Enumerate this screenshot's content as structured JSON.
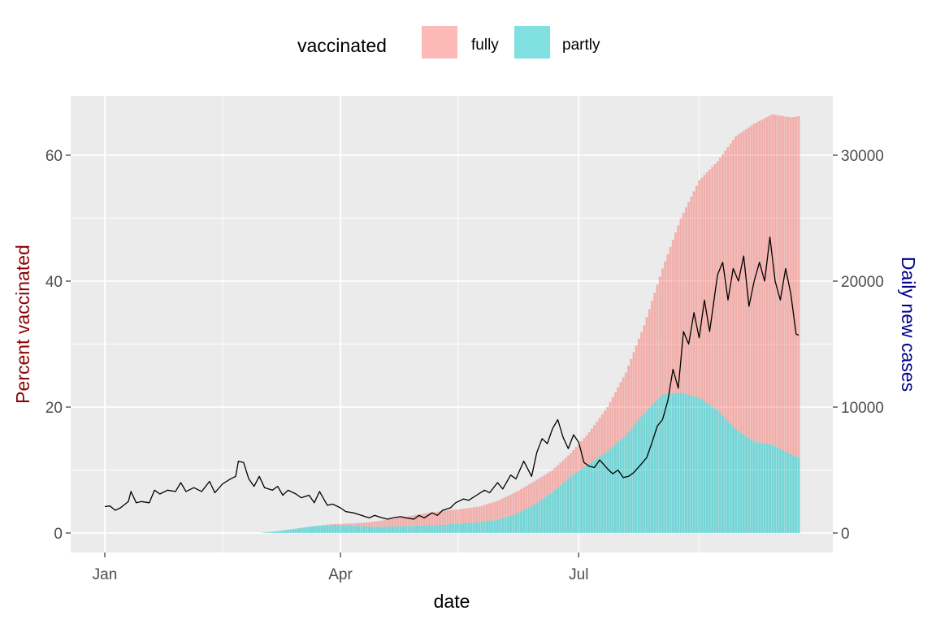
{
  "chart_data": {
    "type": "bar",
    "title": "",
    "xlabel": "date",
    "ylabel_left": "Percent vaccinated",
    "ylabel_right": "Daily new cases",
    "colors": {
      "fully": "#f8766d",
      "partly": "#00bfc4",
      "line": "#000000",
      "panel": "#ebebeb",
      "ylabel_left": "#8b0000",
      "ylabel_right": "#00008b"
    },
    "grid": true,
    "legend": {
      "position": "top",
      "title": "vaccinated",
      "entries": [
        "fully",
        "partly"
      ]
    },
    "x_axis": {
      "type": "date",
      "range": [
        "2021-01-01",
        "2021-09-23"
      ],
      "ticks": [
        "Jan",
        "Apr",
        "Jul"
      ]
    },
    "y_left": {
      "range": [
        0,
        67
      ],
      "ticks": [
        0,
        20,
        40,
        60
      ]
    },
    "y_right": {
      "range": [
        0,
        33500
      ],
      "ticks": [
        "0",
        "10000",
        "20000",
        "30000"
      ]
    },
    "bar_series": [
      {
        "name": "partly",
        "points": [
          [
            "2021-03-01",
            0
          ],
          [
            "2021-03-08",
            0.3
          ],
          [
            "2021-03-15",
            0.7
          ],
          [
            "2021-03-22",
            1.1
          ],
          [
            "2021-03-29",
            1.3
          ],
          [
            "2021-04-05",
            1.2
          ],
          [
            "2021-04-12",
            1.0
          ],
          [
            "2021-04-19",
            1.0
          ],
          [
            "2021-04-26",
            1.1
          ],
          [
            "2021-05-03",
            1.2
          ],
          [
            "2021-05-10",
            1.3
          ],
          [
            "2021-05-17",
            1.5
          ],
          [
            "2021-05-24",
            1.7
          ],
          [
            "2021-05-31",
            2.1
          ],
          [
            "2021-06-07",
            3.0
          ],
          [
            "2021-06-14",
            4.5
          ],
          [
            "2021-06-21",
            6.5
          ],
          [
            "2021-06-28",
            9.0
          ],
          [
            "2021-07-05",
            11.0
          ],
          [
            "2021-07-12",
            13.0
          ],
          [
            "2021-07-19",
            15.5
          ],
          [
            "2021-07-26",
            19.0
          ],
          [
            "2021-08-02",
            22.0
          ],
          [
            "2021-08-09",
            22.3
          ],
          [
            "2021-08-16",
            21.5
          ],
          [
            "2021-08-23",
            19.5
          ],
          [
            "2021-08-30",
            16.5
          ],
          [
            "2021-09-06",
            14.5
          ],
          [
            "2021-09-13",
            14.0
          ],
          [
            "2021-09-20",
            12.5
          ],
          [
            "2021-09-23",
            12.0
          ]
        ]
      },
      {
        "name": "fully",
        "points": [
          [
            "2021-03-01",
            0
          ],
          [
            "2021-03-08",
            0
          ],
          [
            "2021-03-15",
            0
          ],
          [
            "2021-03-22",
            0
          ],
          [
            "2021-03-29",
            0.1
          ],
          [
            "2021-04-05",
            0.3
          ],
          [
            "2021-04-12",
            0.7
          ],
          [
            "2021-04-19",
            1.1
          ],
          [
            "2021-04-26",
            1.5
          ],
          [
            "2021-05-03",
            1.9
          ],
          [
            "2021-05-10",
            2.2
          ],
          [
            "2021-05-17",
            2.3
          ],
          [
            "2021-05-24",
            2.5
          ],
          [
            "2021-05-31",
            3.0
          ],
          [
            "2021-06-07",
            3.5
          ],
          [
            "2021-06-14",
            3.7
          ],
          [
            "2021-06-21",
            3.5
          ],
          [
            "2021-06-28",
            3.7
          ],
          [
            "2021-07-05",
            5.0
          ],
          [
            "2021-07-12",
            7.0
          ],
          [
            "2021-07-19",
            10.0
          ],
          [
            "2021-07-26",
            14.0
          ],
          [
            "2021-08-02",
            20.0
          ],
          [
            "2021-08-09",
            27.7
          ],
          [
            "2021-08-16",
            34.5
          ],
          [
            "2021-08-23",
            39.5
          ],
          [
            "2021-08-30",
            46.5
          ],
          [
            "2021-09-06",
            50.5
          ],
          [
            "2021-09-13",
            52.5
          ],
          [
            "2021-09-20",
            53.5
          ],
          [
            "2021-09-23",
            54.2
          ]
        ]
      }
    ],
    "line_series": {
      "name": "Daily new cases",
      "points": [
        [
          "2021-01-01",
          2100
        ],
        [
          "2021-01-03",
          2150
        ],
        [
          "2021-01-05",
          1800
        ],
        [
          "2021-01-07",
          2000
        ],
        [
          "2021-01-10",
          2500
        ],
        [
          "2021-01-11",
          3300
        ],
        [
          "2021-01-13",
          2400
        ],
        [
          "2021-01-15",
          2500
        ],
        [
          "2021-01-18",
          2400
        ],
        [
          "2021-01-20",
          3400
        ],
        [
          "2021-01-22",
          3100
        ],
        [
          "2021-01-25",
          3400
        ],
        [
          "2021-01-28",
          3300
        ],
        [
          "2021-01-30",
          4000
        ],
        [
          "2021-02-01",
          3300
        ],
        [
          "2021-02-04",
          3600
        ],
        [
          "2021-02-07",
          3300
        ],
        [
          "2021-02-10",
          4100
        ],
        [
          "2021-02-12",
          3200
        ],
        [
          "2021-02-15",
          3900
        ],
        [
          "2021-02-18",
          4300
        ],
        [
          "2021-02-20",
          4500
        ],
        [
          "2021-02-21",
          5700
        ],
        [
          "2021-02-23",
          5600
        ],
        [
          "2021-02-25",
          4300
        ],
        [
          "2021-02-27",
          3700
        ],
        [
          "2021-03-01",
          4500
        ],
        [
          "2021-03-03",
          3600
        ],
        [
          "2021-03-06",
          3400
        ],
        [
          "2021-03-08",
          3700
        ],
        [
          "2021-03-10",
          3000
        ],
        [
          "2021-03-12",
          3400
        ],
        [
          "2021-03-15",
          3100
        ],
        [
          "2021-03-17",
          2800
        ],
        [
          "2021-03-20",
          3000
        ],
        [
          "2021-03-22",
          2400
        ],
        [
          "2021-03-24",
          3300
        ],
        [
          "2021-03-27",
          2200
        ],
        [
          "2021-03-29",
          2300
        ],
        [
          "2021-04-01",
          2000
        ],
        [
          "2021-04-03",
          1700
        ],
        [
          "2021-04-06",
          1600
        ],
        [
          "2021-04-09",
          1400
        ],
        [
          "2021-04-12",
          1200
        ],
        [
          "2021-04-14",
          1400
        ],
        [
          "2021-04-17",
          1200
        ],
        [
          "2021-04-19",
          1100
        ],
        [
          "2021-04-21",
          1200
        ],
        [
          "2021-04-24",
          1300
        ],
        [
          "2021-04-26",
          1200
        ],
        [
          "2021-04-29",
          1100
        ],
        [
          "2021-05-01",
          1400
        ],
        [
          "2021-05-03",
          1200
        ],
        [
          "2021-05-06",
          1600
        ],
        [
          "2021-05-08",
          1400
        ],
        [
          "2021-05-10",
          1800
        ],
        [
          "2021-05-13",
          2000
        ],
        [
          "2021-05-15",
          2400
        ],
        [
          "2021-05-18",
          2700
        ],
        [
          "2021-05-20",
          2600
        ],
        [
          "2021-05-23",
          3000
        ],
        [
          "2021-05-26",
          3400
        ],
        [
          "2021-05-28",
          3200
        ],
        [
          "2021-05-31",
          4000
        ],
        [
          "2021-06-02",
          3500
        ],
        [
          "2021-06-05",
          4600
        ],
        [
          "2021-06-07",
          4300
        ],
        [
          "2021-06-10",
          5700
        ],
        [
          "2021-06-13",
          4500
        ],
        [
          "2021-06-15",
          6400
        ],
        [
          "2021-06-17",
          7500
        ],
        [
          "2021-06-19",
          7100
        ],
        [
          "2021-06-21",
          8300
        ],
        [
          "2021-06-23",
          9000
        ],
        [
          "2021-06-25",
          7600
        ],
        [
          "2021-06-27",
          6700
        ],
        [
          "2021-06-29",
          7800
        ],
        [
          "2021-07-01",
          7200
        ],
        [
          "2021-07-03",
          5600
        ],
        [
          "2021-07-05",
          5300
        ],
        [
          "2021-07-07",
          5200
        ],
        [
          "2021-07-09",
          5800
        ],
        [
          "2021-07-12",
          5100
        ],
        [
          "2021-07-14",
          4700
        ],
        [
          "2021-07-16",
          5000
        ],
        [
          "2021-07-18",
          4400
        ],
        [
          "2021-07-20",
          4500
        ],
        [
          "2021-07-22",
          4800
        ],
        [
          "2021-07-25",
          5500
        ],
        [
          "2021-07-27",
          6000
        ],
        [
          "2021-07-29",
          7200
        ],
        [
          "2021-07-31",
          8500
        ],
        [
          "2021-08-02",
          9000
        ],
        [
          "2021-08-04",
          10500
        ],
        [
          "2021-08-06",
          13000
        ],
        [
          "2021-08-08",
          11500
        ],
        [
          "2021-08-10",
          16000
        ],
        [
          "2021-08-12",
          15000
        ],
        [
          "2021-08-14",
          17500
        ],
        [
          "2021-08-16",
          15500
        ],
        [
          "2021-08-18",
          18500
        ],
        [
          "2021-08-20",
          16000
        ],
        [
          "2021-08-23",
          20500
        ],
        [
          "2021-08-25",
          21500
        ],
        [
          "2021-08-27",
          18500
        ],
        [
          "2021-08-29",
          21000
        ],
        [
          "2021-08-31",
          20000
        ],
        [
          "2021-09-02",
          22000
        ],
        [
          "2021-09-04",
          18000
        ],
        [
          "2021-09-06",
          20000
        ],
        [
          "2021-09-08",
          21500
        ],
        [
          "2021-09-10",
          20000
        ],
        [
          "2021-09-12",
          23500
        ],
        [
          "2021-09-14",
          20000
        ],
        [
          "2021-09-16",
          18500
        ],
        [
          "2021-09-18",
          21000
        ],
        [
          "2021-09-20",
          19000
        ],
        [
          "2021-09-22",
          15800
        ],
        [
          "2021-09-23",
          15700
        ]
      ]
    }
  }
}
